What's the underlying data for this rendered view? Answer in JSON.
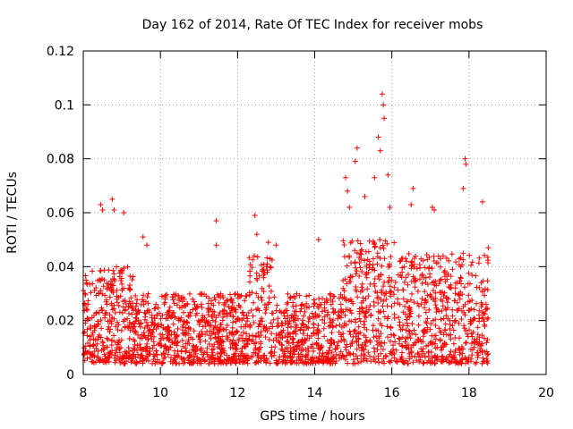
{
  "chart_data": {
    "type": "scatter",
    "title": "Day 162 of 2014, Rate Of TEC Index for receiver mobs",
    "xlabel": "GPS time / hours",
    "ylabel": "ROTI / TECUs",
    "xlim": [
      8,
      20
    ],
    "ylim": [
      0,
      0.12
    ],
    "xticks": [
      8,
      10,
      12,
      14,
      16,
      18,
      20
    ],
    "xtick_labels": [
      "8",
      "10",
      "12",
      "14",
      "16",
      "18",
      "20"
    ],
    "yticks": [
      0,
      0.02,
      0.04,
      0.06,
      0.08,
      0.1,
      0.12
    ],
    "ytick_labels": [
      "0",
      "0.02",
      "0.04",
      "0.06",
      "0.08",
      "0.1",
      "0.12"
    ],
    "grid": true,
    "marker": "plus",
    "color": "#ff0000",
    "series": [
      {
        "name": "ROTI",
        "description_of_density": "dense band 0.005-0.035 across 8-18.5 h",
        "highlights": [
          {
            "x": 8.45,
            "y": 0.063
          },
          {
            "x": 8.5,
            "y": 0.061
          },
          {
            "x": 8.75,
            "y": 0.065
          },
          {
            "x": 8.8,
            "y": 0.061
          },
          {
            "x": 9.05,
            "y": 0.06
          },
          {
            "x": 9.55,
            "y": 0.051
          },
          {
            "x": 9.65,
            "y": 0.048
          },
          {
            "x": 11.45,
            "y": 0.057
          },
          {
            "x": 11.45,
            "y": 0.048
          },
          {
            "x": 12.45,
            "y": 0.059
          },
          {
            "x": 12.5,
            "y": 0.052
          },
          {
            "x": 12.8,
            "y": 0.049
          },
          {
            "x": 13.0,
            "y": 0.048
          },
          {
            "x": 14.1,
            "y": 0.05
          },
          {
            "x": 14.8,
            "y": 0.073
          },
          {
            "x": 14.85,
            "y": 0.068
          },
          {
            "x": 14.9,
            "y": 0.062
          },
          {
            "x": 15.05,
            "y": 0.079
          },
          {
            "x": 15.1,
            "y": 0.084
          },
          {
            "x": 15.3,
            "y": 0.066
          },
          {
            "x": 15.55,
            "y": 0.073
          },
          {
            "x": 15.65,
            "y": 0.088
          },
          {
            "x": 15.7,
            "y": 0.083
          },
          {
            "x": 15.75,
            "y": 0.104
          },
          {
            "x": 15.78,
            "y": 0.1
          },
          {
            "x": 15.8,
            "y": 0.095
          },
          {
            "x": 15.9,
            "y": 0.074
          },
          {
            "x": 15.95,
            "y": 0.062
          },
          {
            "x": 16.55,
            "y": 0.069
          },
          {
            "x": 16.5,
            "y": 0.063
          },
          {
            "x": 17.05,
            "y": 0.062
          },
          {
            "x": 17.1,
            "y": 0.061
          },
          {
            "x": 17.85,
            "y": 0.069
          },
          {
            "x": 17.9,
            "y": 0.08
          },
          {
            "x": 17.92,
            "y": 0.078
          },
          {
            "x": 18.35,
            "y": 0.064
          },
          {
            "x": 18.5,
            "y": 0.047
          }
        ]
      }
    ]
  }
}
